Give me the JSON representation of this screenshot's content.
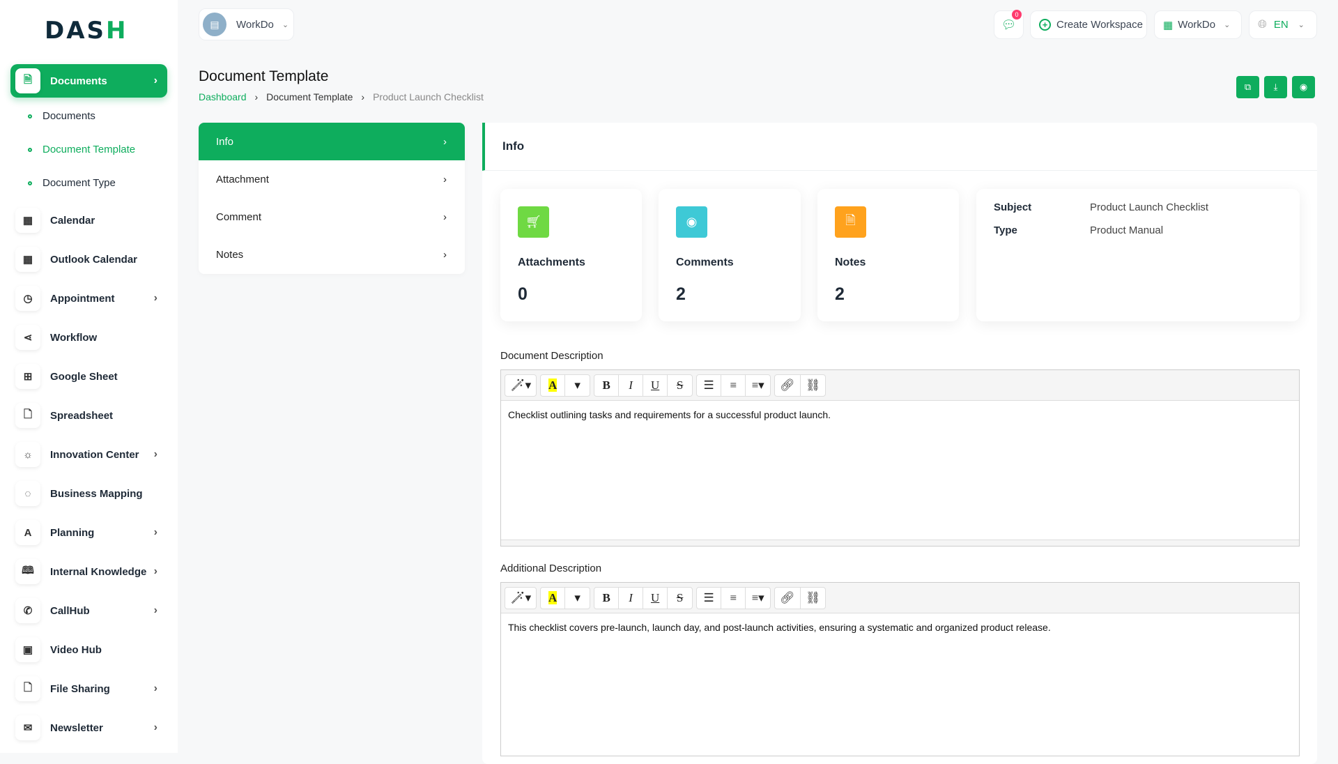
{
  "brand": {
    "logo": "DASH"
  },
  "header": {
    "workspace": "WorkDo",
    "chat_badge": "0",
    "create_workspace": "Create Workspace",
    "workspace_menu": "WorkDo",
    "language": "EN"
  },
  "sidebar": {
    "items": [
      {
        "label": "Documents",
        "icon": "document-icon",
        "expandable": true,
        "active": true
      },
      {
        "label": "Calendar",
        "icon": "calendar-icon",
        "expandable": false
      },
      {
        "label": "Outlook Calendar",
        "icon": "calendar-icon",
        "expandable": false
      },
      {
        "label": "Appointment",
        "icon": "calendar-clock-icon",
        "expandable": true
      },
      {
        "label": "Workflow",
        "icon": "share-icon",
        "expandable": false
      },
      {
        "label": "Google Sheet",
        "icon": "table-icon",
        "expandable": false
      },
      {
        "label": "Spreadsheet",
        "icon": "file-icon",
        "expandable": false
      },
      {
        "label": "Innovation Center",
        "icon": "bulb-icon",
        "expandable": true
      },
      {
        "label": "Business Mapping",
        "icon": "circle-dashed-icon",
        "expandable": false
      },
      {
        "label": "Planning",
        "icon": "planning-icon",
        "expandable": true
      },
      {
        "label": "Internal Knowledge",
        "icon": "book-icon",
        "expandable": true
      },
      {
        "label": "CallHub",
        "icon": "phone-icon",
        "expandable": true
      },
      {
        "label": "Video Hub",
        "icon": "video-icon",
        "expandable": false
      },
      {
        "label": "File Sharing",
        "icon": "file-icon",
        "expandable": true
      },
      {
        "label": "Newsletter",
        "icon": "mail-icon",
        "expandable": true
      }
    ],
    "subitems": [
      {
        "label": "Documents"
      },
      {
        "label": "Document Template",
        "active": true
      },
      {
        "label": "Document Type"
      }
    ]
  },
  "page": {
    "title": "Document Template",
    "breadcrumb": [
      "Dashboard",
      "Document Template",
      "Product Launch Checklist"
    ]
  },
  "tabs": [
    {
      "label": "Info",
      "active": true
    },
    {
      "label": "Attachment"
    },
    {
      "label": "Comment"
    },
    {
      "label": "Notes"
    }
  ],
  "info": {
    "heading": "Info",
    "stats": [
      {
        "label": "Attachments",
        "value": "0",
        "color": "#6fd943",
        "icon": "cart-icon"
      },
      {
        "label": "Comments",
        "value": "2",
        "color": "#3ec9d6",
        "icon": "eye-icon"
      },
      {
        "label": "Notes",
        "value": "2",
        "color": "#ffa21d",
        "icon": "file-icon"
      }
    ],
    "details": [
      {
        "key": "Subject",
        "value": "Product Launch Checklist"
      },
      {
        "key": "Type",
        "value": "Product Manual"
      }
    ],
    "document_description_label": "Document Description",
    "document_description": "Checklist outlining tasks and requirements for a successful product launch.",
    "additional_description_label": "Additional Description",
    "additional_description": "This checklist covers pre-launch, launch day, and post-launch activities, ensuring a systematic and organized product release."
  },
  "colors": {
    "accent": "#0ead5d"
  }
}
